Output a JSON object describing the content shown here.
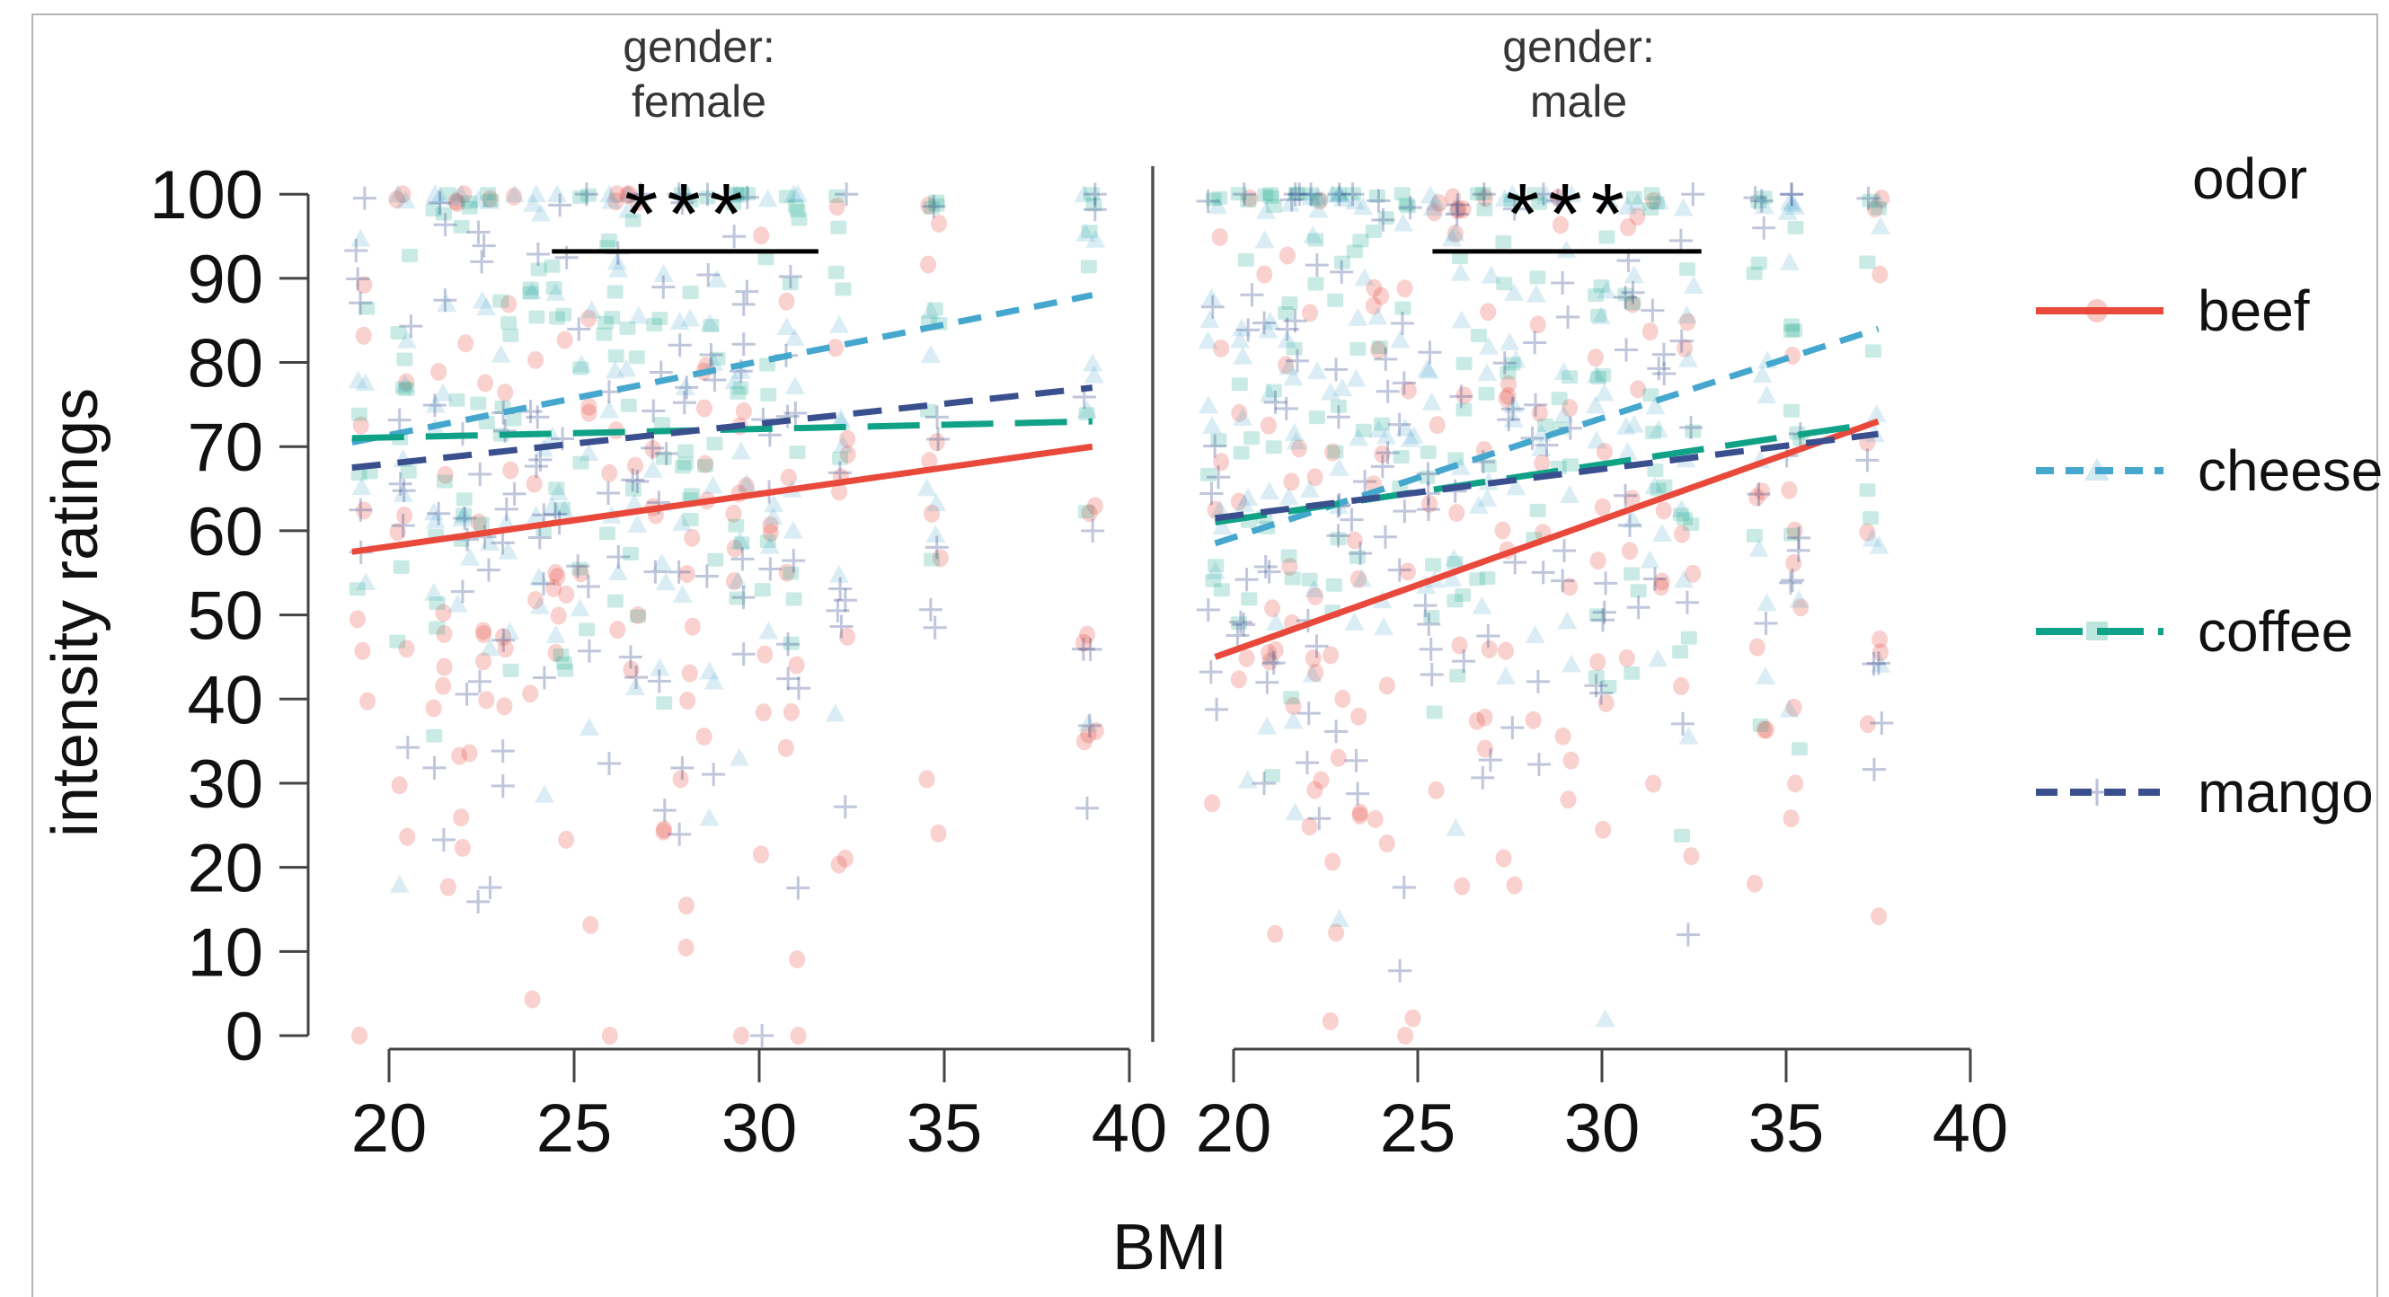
{
  "figure": {
    "background": "#ffffff",
    "frame_color": "#b5b5b5"
  },
  "chart_data": {
    "type": "scatter",
    "title": "",
    "xlabel": "BMI",
    "ylabel": "intensity ratings",
    "x_ticks": [
      20,
      25,
      30,
      35,
      40
    ],
    "y_ticks": [
      0,
      10,
      20,
      30,
      40,
      50,
      60,
      70,
      80,
      90,
      100
    ],
    "xlim": [
      18.5,
      40.5
    ],
    "ylim": [
      0,
      100
    ],
    "grid": "off",
    "facet_variable": "gender",
    "colors": {
      "axis": "#444444",
      "divider": "#4f4f4f",
      "significance": "#000000",
      "text": "#111111",
      "facet_title_text": "#363636"
    },
    "legend": {
      "title": "odor",
      "position": "right"
    },
    "odors": [
      {
        "name": "beef",
        "color": "#e8493b",
        "line_style": "solid",
        "dash": "",
        "legend_dash": "",
        "marker": "circle",
        "scatter_mu": 55,
        "scatter_sd": 24,
        "scatter_p100": 0.05
      },
      {
        "name": "cheese",
        "color": "#45a7cd",
        "line_style": "dashed",
        "dash": "26 17",
        "legend_dash": "20 13",
        "marker": "triangle",
        "scatter_mu": 73,
        "scatter_sd": 20,
        "scatter_p100": 0.1
      },
      {
        "name": "coffee",
        "color": "#0fa287",
        "line_style": "long-dash",
        "dash": "58 24",
        "legend_dash": "52 16",
        "marker": "square",
        "scatter_mu": 73,
        "scatter_sd": 20,
        "scatter_p100": 0.1
      },
      {
        "name": "mango",
        "color": "#3a4f8e",
        "line_style": "dashed",
        "dash": "32 19",
        "legend_dash": "24 14",
        "marker": "plus",
        "scatter_mu": 64,
        "scatter_sd": 22,
        "scatter_p100": 0.06
      }
    ],
    "panels": [
      {
        "facet_line1": "gender:",
        "facet_line2": "female",
        "significance": {
          "label": "***",
          "x_start": 24.4,
          "x_end": 31.6,
          "y": 93.2
        },
        "regression_lines": [
          {
            "odor": "beef",
            "x": [
              19.0,
              39.0
            ],
            "y": [
              57.5,
              70.0
            ]
          },
          {
            "odor": "cheese",
            "x": [
              19.0,
              39.0
            ],
            "y": [
              70.5,
              88.0
            ]
          },
          {
            "odor": "coffee",
            "x": [
              19.0,
              39.0
            ],
            "y": [
              71.0,
              73.0
            ]
          },
          {
            "odor": "mango",
            "x": [
              19.0,
              39.0
            ],
            "y": [
              67.5,
              77.0
            ]
          }
        ],
        "scatter_bmi_strips": [
          19.3,
          20.4,
          21.4,
          22.0,
          22.6,
          23.2,
          24.0,
          24.6,
          25.3,
          26.0,
          26.6,
          27.3,
          28.0,
          28.7,
          29.5,
          30.2,
          30.9,
          32.2,
          34.7,
          38.9
        ]
      },
      {
        "facet_line1": "gender:",
        "facet_line2": "male",
        "significance": {
          "label": "***",
          "x_start": 25.4,
          "x_end": 32.7,
          "y": 93.2
        },
        "regression_lines": [
          {
            "odor": "beef",
            "x": [
              19.5,
              37.5
            ],
            "y": [
              45.0,
              73.0
            ]
          },
          {
            "odor": "cheese",
            "x": [
              19.5,
              37.5
            ],
            "y": [
              58.5,
              84.0
            ]
          },
          {
            "odor": "coffee",
            "x": [
              19.5,
              37.0
            ],
            "y": [
              61.0,
              72.5
            ]
          },
          {
            "odor": "mango",
            "x": [
              19.5,
              37.5
            ],
            "y": [
              61.5,
              71.5
            ]
          }
        ],
        "scatter_bmi_strips": [
          19.5,
          20.3,
          21.0,
          21.6,
          22.2,
          22.8,
          23.4,
          24.0,
          24.7,
          25.4,
          26.1,
          26.8,
          27.5,
          28.3,
          29.0,
          30.0,
          30.8,
          31.5,
          32.3,
          34.3,
          35.2,
          37.4
        ]
      }
    ],
    "scatter": {
      "seed": 20240613,
      "points_per_strip_per_odor_min": 5,
      "points_per_strip_per_odor_max": 9,
      "x_jitter": 0.4,
      "note": "translucent jittered individual-rating point clouds (approximated distributions)"
    }
  }
}
